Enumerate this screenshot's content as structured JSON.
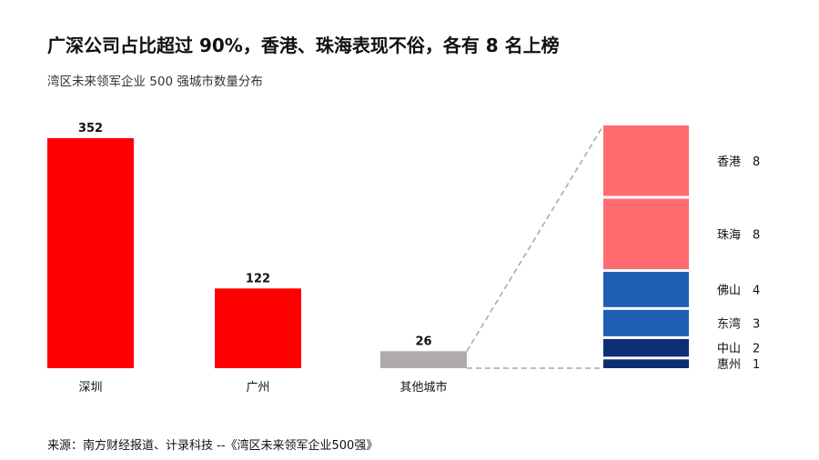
{
  "title": "广深公司占比超过 90%，香港、珠海表现不俗，各有 8 名上榜",
  "subtitle": "湾区未来领军企业 500 强城市数量分布",
  "source": "来源：南方财经报道、计录科技 --《湾区未来领军企业500强》",
  "colors": {
    "main": "#ff0000",
    "other": "#b0abab",
    "pink": "#ff6b6f",
    "blue": "#1f5fb4",
    "navy": "#0d2f73",
    "connector": "#aaaaaa"
  },
  "chart_data": {
    "type": "bar",
    "categories": [
      "深圳",
      "广州",
      "其他城市"
    ],
    "values": [
      352,
      122,
      26
    ],
    "breakdown": {
      "of": "其他城市",
      "type": "stacked-bar",
      "items": [
        {
          "label": "香港",
          "value": 8,
          "color": "#ff6b6f"
        },
        {
          "label": "珠海",
          "value": 8,
          "color": "#ff6b6f"
        },
        {
          "label": "佛山",
          "value": 4,
          "color": "#1f5fb4"
        },
        {
          "label": "东湾",
          "value": 3,
          "color": "#1f5fb4"
        },
        {
          "label": "中山",
          "value": 2,
          "color": "#0d2f73"
        },
        {
          "label": "惠州",
          "value": 1,
          "color": "#0d2f73"
        }
      ]
    }
  }
}
